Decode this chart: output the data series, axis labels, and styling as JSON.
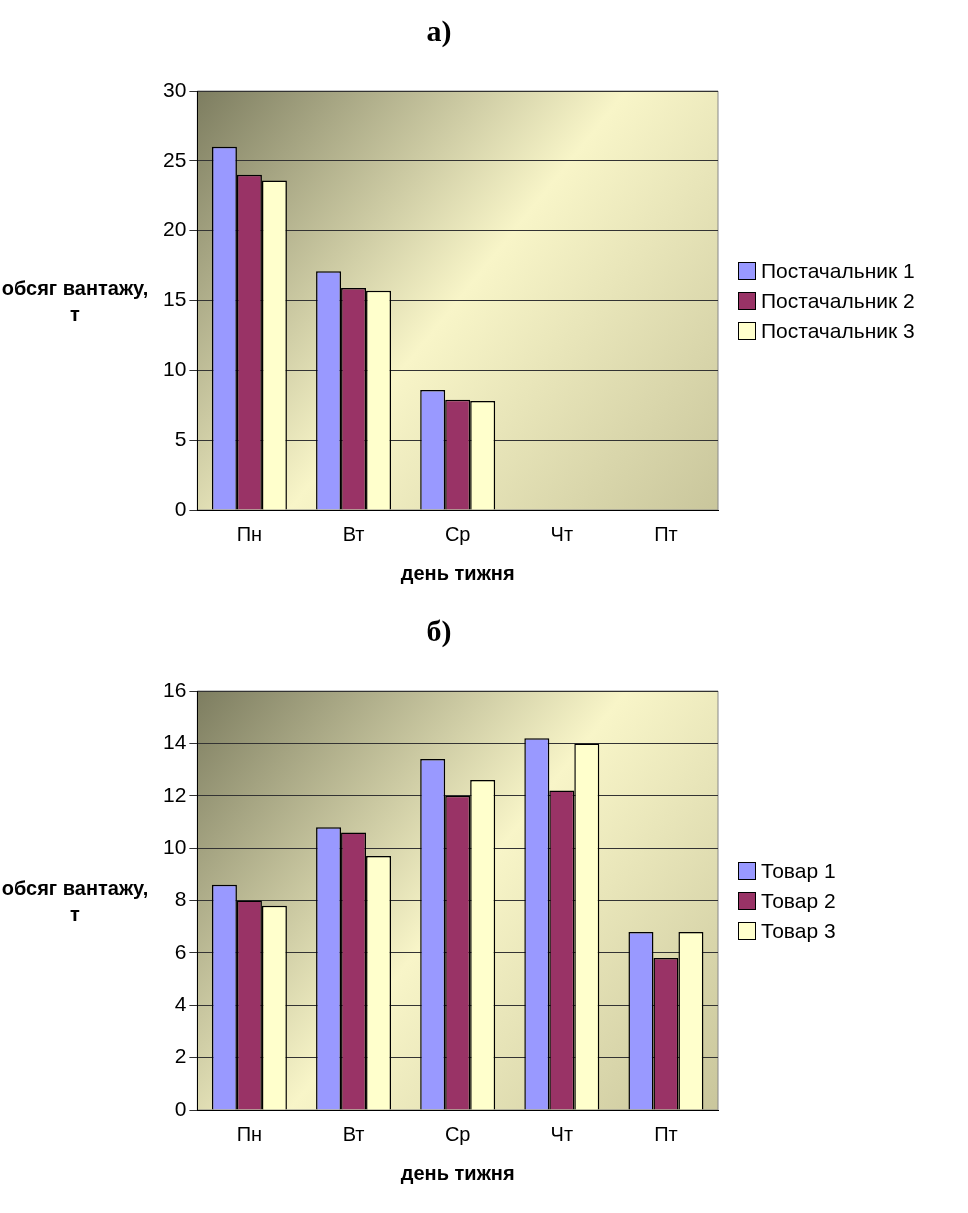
{
  "chart_data": [
    {
      "type": "bar",
      "title": "а)",
      "xlabel": "день тижня",
      "ylabel": "обсяг вантажу, т",
      "categories": [
        "Пн",
        "Вт",
        "Ср",
        "Чт",
        "Пт"
      ],
      "series": [
        {
          "name": "Постачальник 1",
          "color": "#9999ff",
          "values": [
            26,
            17.1,
            8.6,
            null,
            null
          ]
        },
        {
          "name": "Постачальник 2",
          "color": "#993366",
          "values": [
            24,
            15.9,
            7.9,
            null,
            null
          ]
        },
        {
          "name": "Постачальник 3",
          "color": "#ffffcc",
          "values": [
            23.6,
            15.7,
            7.8,
            null,
            null
          ]
        }
      ],
      "ylim": [
        0,
        30
      ],
      "yticks": [
        0,
        5,
        10,
        15,
        20,
        25,
        30
      ],
      "grid": "y",
      "legend": "right"
    },
    {
      "type": "bar",
      "title": "б)",
      "xlabel": "день тижня",
      "ylabel": "обсяг вантажу, т",
      "categories": [
        "Пн",
        "Вт",
        "Ср",
        "Чт",
        "Пт"
      ],
      "series": [
        {
          "name": "Товар 1",
          "color": "#9999ff",
          "values": [
            8.6,
            10.8,
            13.4,
            14.2,
            6.8
          ]
        },
        {
          "name": "Товар 2",
          "color": "#993366",
          "values": [
            8.0,
            10.6,
            12.0,
            12.2,
            5.8
          ]
        },
        {
          "name": "Товар 3",
          "color": "#ffffcc",
          "values": [
            7.8,
            9.7,
            12.6,
            14.0,
            6.8
          ]
        }
      ],
      "ylim": [
        0,
        16
      ],
      "yticks": [
        0,
        2,
        4,
        6,
        8,
        10,
        12,
        14,
        16
      ],
      "grid": "y",
      "legend": "right"
    }
  ]
}
